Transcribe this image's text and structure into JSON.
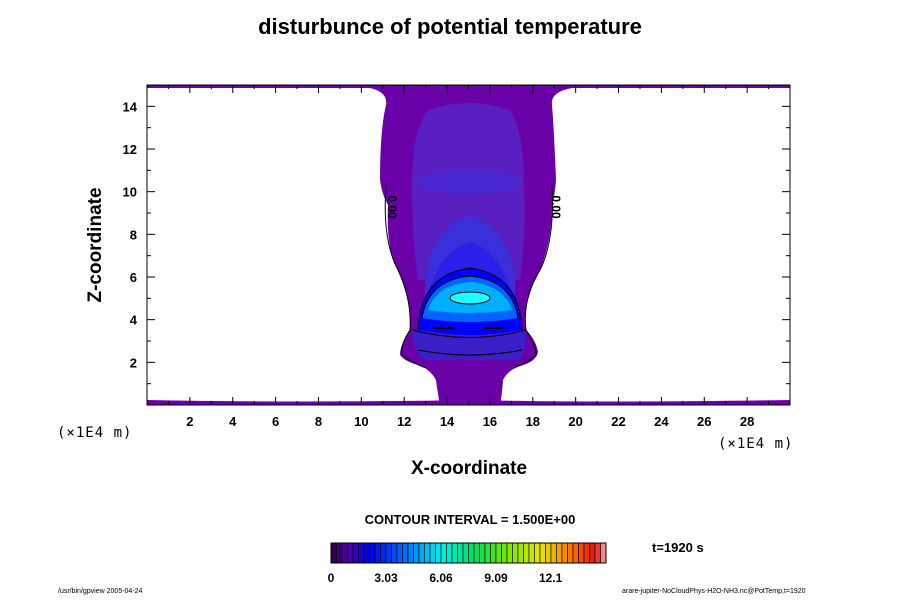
{
  "chart_data": {
    "type": "contour",
    "title": "disturbunce of potential temperature",
    "xlabel": "X-coordinate",
    "ylabel": "Z-coordinate",
    "x_scale_note": "(×1E4 m)",
    "y_scale_note": "(×1E4 m)",
    "xlim": [
      0,
      30
    ],
    "ylim": [
      0,
      15
    ],
    "x_ticks": [
      2,
      4,
      6,
      8,
      10,
      12,
      14,
      16,
      18,
      20,
      22,
      24,
      26,
      28
    ],
    "y_ticks": [
      2,
      4,
      6,
      8,
      10,
      12,
      14
    ],
    "contour_interval_label": "CONTOUR INTERVAL = 1.500E+00",
    "contour_labels": [
      "0.00",
      "0.00"
    ],
    "colorbar": {
      "min": 0,
      "max": 15.15,
      "tick_values": [
        0,
        3.03,
        6.06,
        9.09,
        12.1
      ],
      "tick_labels": [
        "0",
        "3.03",
        "6.06",
        "9.09",
        "12.1"
      ]
    },
    "time_label": "t=1920 s"
  },
  "footer": {
    "left": "/usr/bin/gpview 2005-04-24",
    "right": "arare-jupiter-NoCloudPhys-H2O-NH3.nc@PotTemp,t=1920"
  },
  "colors": {
    "background": "#ffffff",
    "plume_outer": "#6a00a8",
    "plume_mid": "#5a1fc0",
    "plume_inner": "#3a2fd8",
    "core": "#0000ff",
    "core_light": "#00b0ff",
    "core_center": "#20ffff"
  }
}
